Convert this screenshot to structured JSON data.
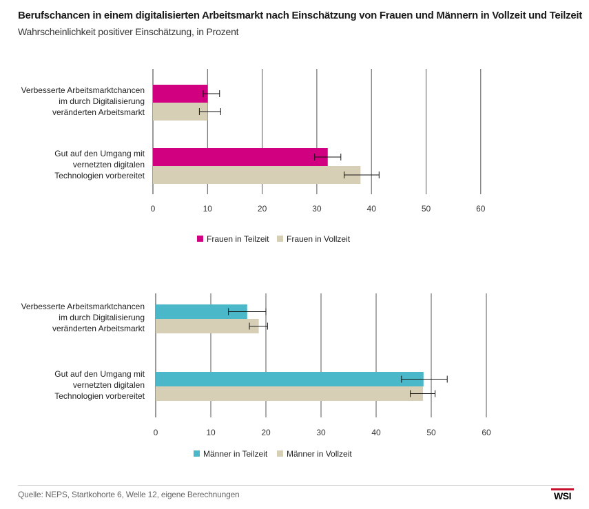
{
  "title": "Berufschancen in einem digitalisierten Arbeitsmarkt nach Einschätzung von Frauen und Männern in Vollzeit und Teilzeit",
  "subtitle": "Wahrscheinlichkeit positiver Einschätzung, in Prozent",
  "source": "Quelle: NEPS, Startkohorte 6, Welle 12, eigene Berechnungen",
  "logo": "WSI",
  "colors": {
    "frauen_teilzeit": "#d10080",
    "maenner_teilzeit": "#4ab8c8",
    "vollzeit": "#d6cfb5",
    "grid": "#555555",
    "brand": "#c8102e"
  },
  "chart_data": [
    {
      "type": "bar",
      "orientation": "horizontal",
      "categories": [
        [
          "Verbesserte Arbeitsmarktchancen",
          "im durch Digitalisierung",
          "veränderten Arbeitsmarkt"
        ],
        [
          "Gut auf den Umgang mit",
          "vernetzten digitalen",
          "Technologien vorbereitet"
        ]
      ],
      "series": [
        {
          "name": "Frauen  in Teilzeit",
          "values": [
            10,
            32
          ],
          "error_low": [
            9.2,
            29.6
          ],
          "error_high": [
            12.2,
            34.4
          ],
          "color": "#d10080"
        },
        {
          "name": "Frauen in Vollzeit",
          "values": [
            10,
            38
          ],
          "error_low": [
            8.5,
            35
          ],
          "error_high": [
            12.4,
            41.4
          ],
          "color": "#d6cfb5"
        }
      ],
      "xlim": [
        0,
        60
      ],
      "xticks": [
        0,
        10,
        20,
        30,
        40,
        50,
        60
      ],
      "grid": true,
      "legend_position": "bottom"
    },
    {
      "type": "bar",
      "orientation": "horizontal",
      "categories": [
        [
          "Verbesserte Arbeitsmarktchancen",
          "im durch Digitalisierung",
          "veränderten Arbeitsmarkt"
        ],
        [
          "Gut auf den Umgang mit",
          "vernetzten digitalen",
          "Technologien vorbereitet"
        ]
      ],
      "series": [
        {
          "name": "Männer in Teilzeit",
          "values": [
            16.6,
            48.6
          ],
          "error_low": [
            13.2,
            44.6
          ],
          "error_high": [
            20,
            52.9
          ],
          "color": "#4ab8c8"
        },
        {
          "name": "Männer in Vollzeit",
          "values": [
            18.7,
            48.5
          ],
          "error_low": [
            17,
            46.2
          ],
          "error_high": [
            20.3,
            50.7
          ],
          "color": "#d6cfb5"
        }
      ],
      "xlim": [
        0,
        60
      ],
      "xticks": [
        0,
        10,
        20,
        30,
        40,
        50,
        60
      ],
      "grid": true,
      "legend_position": "bottom"
    }
  ]
}
